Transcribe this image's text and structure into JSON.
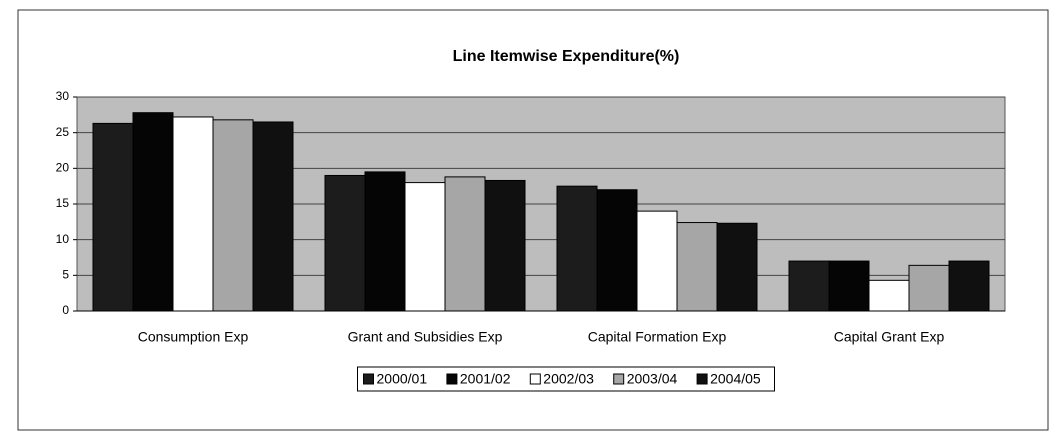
{
  "chart_data": {
    "type": "bar",
    "title": "Line Itemwise Expenditure(%)",
    "categories": [
      "Consumption Exp",
      "Grant and Subsidies Exp",
      "Capital Formation Exp",
      "Capital Grant Exp"
    ],
    "series": [
      {
        "name": "2000/01",
        "color": "#1c1c1c",
        "values": [
          26.3,
          19.0,
          17.5,
          7.0
        ]
      },
      {
        "name": "2001/02",
        "color": "#050505",
        "values": [
          27.8,
          19.5,
          17.0,
          7.0
        ]
      },
      {
        "name": "2002/03",
        "color": "#ffffff",
        "values": [
          27.2,
          18.0,
          14.0,
          4.3
        ]
      },
      {
        "name": "2003/04",
        "color": "#a6a6a6",
        "values": [
          26.8,
          18.8,
          12.4,
          6.4
        ]
      },
      {
        "name": "2004/05",
        "color": "#101010",
        "values": [
          26.5,
          18.3,
          12.3,
          7.0
        ]
      }
    ],
    "ylim": [
      0,
      30
    ],
    "yticks": [
      0,
      5,
      10,
      15,
      20,
      25,
      30
    ],
    "grid": true
  }
}
